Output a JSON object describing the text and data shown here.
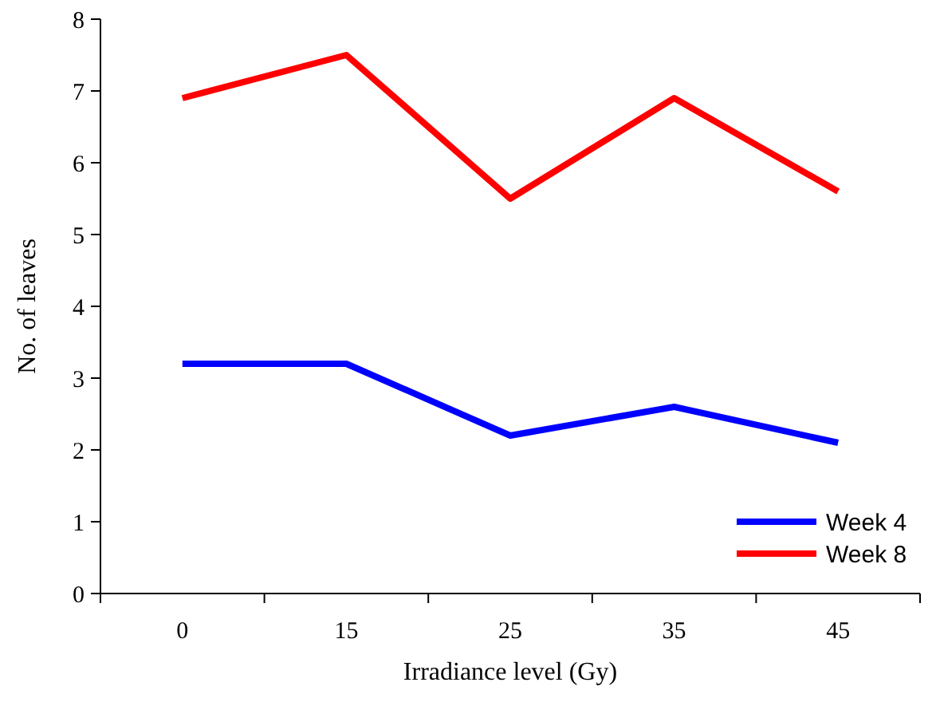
{
  "chart_data": {
    "type": "line",
    "xlabel": "Irradiance level (Gy)",
    "ylabel": "No. of leaves",
    "categories": [
      "0",
      "15",
      "25",
      "35",
      "45"
    ],
    "series": [
      {
        "name": "Week 4",
        "color": "#0000ff",
        "values": [
          3.2,
          3.2,
          2.2,
          2.6,
          2.1
        ]
      },
      {
        "name": "Week 8",
        "color": "#ff0000",
        "values": [
          6.9,
          7.5,
          5.5,
          6.9,
          5.6
        ]
      }
    ],
    "ylim": [
      0,
      8
    ],
    "yticks": [
      0,
      1,
      2,
      3,
      4,
      5,
      6,
      7,
      8
    ],
    "grid": false,
    "legend": "bottom right",
    "marker": "none",
    "line_style": "solid"
  }
}
